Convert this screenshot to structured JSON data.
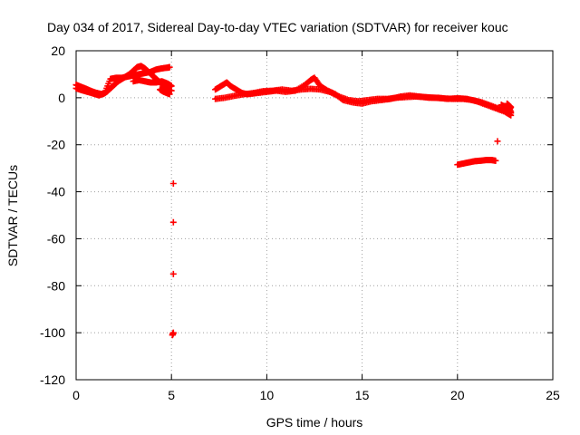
{
  "chart_data": {
    "type": "scatter",
    "title": "Day 034 of 2017, Sidereal Day-to-day VTEC variation (SDTVAR) for receiver kouc",
    "xlabel": "GPS time / hours",
    "ylabel": "SDTVAR / TECUs",
    "xlim": [
      0,
      25
    ],
    "ylim": [
      -120,
      20
    ],
    "xticks": [
      0,
      5,
      10,
      15,
      20,
      25
    ],
    "yticks": [
      20,
      0,
      -20,
      -40,
      -60,
      -80,
      -100,
      -120
    ],
    "grid": true,
    "marker": "+",
    "color": "#ff0000",
    "series": [
      {
        "name": "arc-early-1",
        "points": [
          [
            0.0,
            5.5
          ],
          [
            0.2,
            4.8
          ],
          [
            0.4,
            4.2
          ],
          [
            0.6,
            3.5
          ],
          [
            0.8,
            2.8
          ],
          [
            1.0,
            2.2
          ],
          [
            1.2,
            1.8
          ],
          [
            1.4,
            1.5
          ],
          [
            1.6,
            2.5
          ],
          [
            1.8,
            4.0
          ],
          [
            2.0,
            5.5
          ],
          [
            2.2,
            7.0
          ],
          [
            2.4,
            8.0
          ],
          [
            2.6,
            9.0
          ],
          [
            2.8,
            10.0
          ],
          [
            3.0,
            11.5
          ],
          [
            3.2,
            13.0
          ],
          [
            3.4,
            13.5
          ],
          [
            3.6,
            12.5
          ],
          [
            3.8,
            11.0
          ],
          [
            4.0,
            9.5
          ],
          [
            4.2,
            8.0
          ],
          [
            4.4,
            6.5
          ],
          [
            4.6,
            5.0
          ],
          [
            4.8,
            3.5
          ],
          [
            5.0,
            3.0
          ]
        ]
      },
      {
        "name": "arc-early-2",
        "points": [
          [
            0.0,
            4.0
          ],
          [
            0.3,
            3.2
          ],
          [
            0.6,
            2.5
          ],
          [
            0.9,
            1.8
          ],
          [
            1.2,
            1.0
          ],
          [
            1.5,
            2.0
          ],
          [
            1.8,
            8.0
          ],
          [
            2.1,
            8.5
          ],
          [
            2.4,
            8.5
          ],
          [
            2.7,
            9.0
          ],
          [
            3.0,
            9.5
          ],
          [
            3.3,
            10.0
          ],
          [
            3.6,
            10.5
          ],
          [
            3.9,
            11.0
          ],
          [
            4.2,
            12.0
          ],
          [
            4.5,
            12.5
          ],
          [
            4.8,
            12.8
          ],
          [
            4.9,
            13.0
          ]
        ]
      },
      {
        "name": "arc-early-3",
        "points": [
          [
            3.0,
            7.0
          ],
          [
            3.3,
            7.5
          ],
          [
            3.6,
            7.0
          ],
          [
            3.9,
            6.5
          ],
          [
            4.2,
            6.5
          ],
          [
            4.5,
            7.0
          ],
          [
            4.8,
            6.0
          ],
          [
            5.0,
            5.0
          ],
          [
            4.7,
            4.0
          ],
          [
            4.4,
            3.5
          ],
          [
            4.6,
            2.5
          ],
          [
            4.9,
            1.5
          ]
        ]
      },
      {
        "name": "outliers-5h",
        "points": [
          [
            5.1,
            -36.5
          ],
          [
            5.1,
            -53.0
          ],
          [
            5.1,
            -75.0
          ],
          [
            5.1,
            -100.0
          ],
          [
            5.05,
            -101.0
          ]
        ]
      },
      {
        "name": "arc-mid-1",
        "points": [
          [
            7.3,
            -0.5
          ],
          [
            7.8,
            0.0
          ],
          [
            8.3,
            0.8
          ],
          [
            8.8,
            1.5
          ],
          [
            9.3,
            2.0
          ],
          [
            9.8,
            2.8
          ],
          [
            10.3,
            3.0
          ],
          [
            10.8,
            3.5
          ],
          [
            11.3,
            3.0
          ],
          [
            11.8,
            3.5
          ],
          [
            12.3,
            3.8
          ],
          [
            12.8,
            3.5
          ],
          [
            13.3,
            2.5
          ],
          [
            13.8,
            0.5
          ],
          [
            14.3,
            -1.0
          ],
          [
            14.8,
            -1.5
          ],
          [
            15.3,
            -1.0
          ],
          [
            15.8,
            -0.5
          ],
          [
            16.3,
            -0.5
          ],
          [
            16.8,
            0.0
          ],
          [
            17.3,
            0.3
          ],
          [
            17.8,
            0.5
          ],
          [
            18.3,
            0.3
          ],
          [
            18.8,
            0.0
          ],
          [
            19.3,
            -0.3
          ],
          [
            19.8,
            -0.5
          ],
          [
            20.3,
            -0.5
          ],
          [
            20.8,
            -1.0
          ],
          [
            21.3,
            -2.0
          ],
          [
            21.8,
            -3.5
          ],
          [
            22.3,
            -5.0
          ],
          [
            22.8,
            -6.5
          ]
        ]
      },
      {
        "name": "arc-mid-2",
        "points": [
          [
            7.3,
            3.5
          ],
          [
            7.6,
            5.0
          ],
          [
            7.9,
            6.5
          ],
          [
            8.1,
            5.0
          ],
          [
            8.4,
            3.5
          ],
          [
            8.7,
            2.0
          ],
          [
            9.0,
            1.5
          ],
          [
            9.5,
            2.0
          ],
          [
            10.0,
            2.5
          ],
          [
            10.5,
            3.0
          ],
          [
            11.0,
            2.5
          ],
          [
            11.5,
            3.0
          ],
          [
            12.0,
            5.5
          ],
          [
            12.3,
            7.5
          ],
          [
            12.5,
            8.5
          ],
          [
            12.8,
            5.0
          ],
          [
            13.2,
            3.0
          ],
          [
            13.6,
            1.5
          ],
          [
            14.0,
            -1.0
          ],
          [
            14.5,
            -2.0
          ],
          [
            15.0,
            -2.5
          ],
          [
            15.5,
            -1.5
          ],
          [
            16.0,
            -1.0
          ],
          [
            16.5,
            -0.5
          ],
          [
            17.0,
            0.5
          ],
          [
            17.5,
            1.0
          ],
          [
            18.0,
            0.5
          ],
          [
            18.5,
            0.0
          ],
          [
            19.0,
            0.0
          ],
          [
            19.5,
            -0.5
          ],
          [
            20.0,
            -0.2
          ],
          [
            20.5,
            -0.5
          ],
          [
            21.0,
            -1.5
          ],
          [
            21.5,
            -3.0
          ],
          [
            22.0,
            -4.5
          ],
          [
            22.5,
            -6.0
          ],
          [
            22.8,
            -7.5
          ]
        ]
      },
      {
        "name": "arc-mid-3",
        "points": [
          [
            22.3,
            -3.0
          ],
          [
            22.5,
            -4.0
          ],
          [
            22.7,
            -5.0
          ],
          [
            22.8,
            -4.0
          ],
          [
            22.6,
            -2.5
          ],
          [
            22.8,
            -6.0
          ]
        ]
      },
      {
        "name": "arc-late",
        "points": [
          [
            20.0,
            -28.5
          ],
          [
            20.3,
            -28.0
          ],
          [
            20.6,
            -27.5
          ],
          [
            20.9,
            -27.0
          ],
          [
            21.2,
            -26.8
          ],
          [
            21.5,
            -26.5
          ],
          [
            21.8,
            -26.5
          ],
          [
            22.0,
            -26.8
          ],
          [
            22.1,
            -18.5
          ]
        ]
      }
    ]
  }
}
